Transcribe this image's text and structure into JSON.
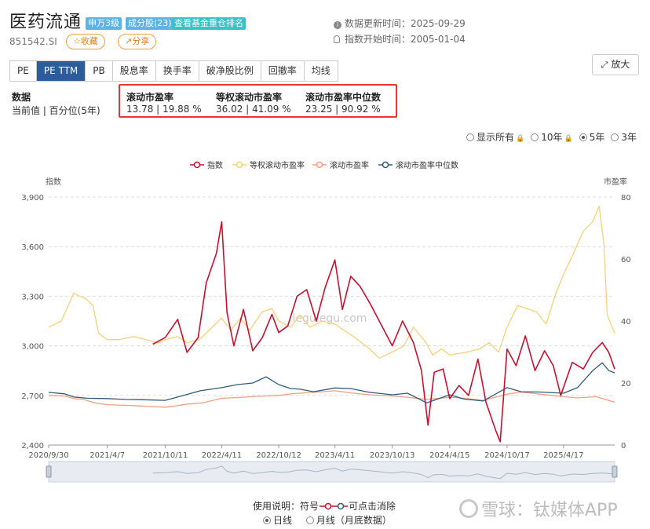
{
  "header": {
    "title": "医药流通",
    "tags": [
      "申万3级",
      "成分股(23)",
      "查看基金重仓排名"
    ],
    "tag_colors": [
      "#5bb3e8",
      "#5bb3e8",
      "#36c2c8"
    ],
    "code": "851542.SI",
    "favorite_label": "☆收藏",
    "share_label": "↗分享",
    "update_label": "数据更新时间：",
    "update_value": "2025-09-29",
    "start_label": "指数开始时间：",
    "start_value": "2005-01-04"
  },
  "tabs": [
    "PE",
    "PE TTM",
    "PB",
    "股息率",
    "换手率",
    "破净股比例",
    "回撤率",
    "均线"
  ],
  "active_tab": 1,
  "zoom_label": "放大",
  "stats": {
    "row_label": "数据",
    "row_sub": "当前值 | 百分位(5年)",
    "items": [
      {
        "name": "滚动市盈率",
        "value": "13.78 | 19.88 %"
      },
      {
        "name": "等权滚动市盈率",
        "value": "36.02 | 41.09 %"
      },
      {
        "name": "滚动市盈率中位数",
        "value": "23.25 | 90.92 %"
      }
    ]
  },
  "range_options": [
    "显示所有",
    "10年",
    "5年",
    "3年"
  ],
  "range_selected": "5年",
  "footer": {
    "usage_label": "使用说明：符号",
    "usage_suffix": "可点击消除",
    "daily_label": "日线",
    "monthly_label": "月线（月底数据）",
    "watermark": "雪球：钛媒体APP",
    "site_watermark": "legulegu.com"
  },
  "colors": {
    "index": "#c8102e",
    "equal": "#f5d27a",
    "pe": "#f0a080",
    "median": "#2f5b7c",
    "accent": "#2a5d9a"
  },
  "chart_data": {
    "type": "line",
    "legend_position": "top-center",
    "y_left_title": "指数",
    "y_right_title": "市盈率",
    "y_left_ticks": [
      "3,900",
      "3,600",
      "3,300",
      "3,000",
      "2,700",
      "2,400"
    ],
    "y_right_ticks": [
      "80",
      "60",
      "40",
      "20",
      "0"
    ],
    "ylim_left": [
      2400,
      3900
    ],
    "ylim_right": [
      0,
      80
    ],
    "x_ticks": [
      "2020/9/30",
      "2021/4/7",
      "2021/10/11",
      "2022/4/11",
      "2022/10/12",
      "2023/4/11",
      "2023/10/13",
      "2024/4/15",
      "2024/10/17",
      "2025/4/17"
    ],
    "x_range": [
      "2020-09-30",
      "2025-09-29"
    ],
    "series": [
      {
        "name": "指数",
        "axis": "left",
        "points": [
          [
            "2021-09-01",
            3010
          ],
          [
            "2021-10-11",
            3050
          ],
          [
            "2021-11-20",
            3160
          ],
          [
            "2021-12-20",
            2960
          ],
          [
            "2022-01-25",
            3050
          ],
          [
            "2022-02-20",
            3380
          ],
          [
            "2022-03-25",
            3560
          ],
          [
            "2022-04-11",
            3750
          ],
          [
            "2022-04-28",
            3200
          ],
          [
            "2022-05-20",
            3000
          ],
          [
            "2022-06-20",
            3220
          ],
          [
            "2022-07-20",
            2970
          ],
          [
            "2022-08-20",
            3050
          ],
          [
            "2022-09-20",
            3190
          ],
          [
            "2022-10-12",
            3080
          ],
          [
            "2022-11-10",
            3120
          ],
          [
            "2022-12-10",
            3300
          ],
          [
            "2023-01-10",
            3340
          ],
          [
            "2023-02-10",
            3150
          ],
          [
            "2023-03-10",
            3350
          ],
          [
            "2023-04-11",
            3520
          ],
          [
            "2023-05-05",
            3220
          ],
          [
            "2023-06-01",
            3420
          ],
          [
            "2023-07-01",
            3360
          ],
          [
            "2023-08-01",
            3260
          ],
          [
            "2023-09-01",
            3150
          ],
          [
            "2023-10-13",
            3000
          ],
          [
            "2023-11-15",
            3150
          ],
          [
            "2023-12-20",
            3020
          ],
          [
            "2024-01-15",
            2850
          ],
          [
            "2024-02-05",
            2520
          ],
          [
            "2024-02-25",
            2840
          ],
          [
            "2024-03-25",
            2860
          ],
          [
            "2024-04-15",
            2680
          ],
          [
            "2024-05-15",
            2760
          ],
          [
            "2024-06-15",
            2700
          ],
          [
            "2024-07-15",
            2920
          ],
          [
            "2024-08-10",
            2660
          ],
          [
            "2024-09-10",
            2490
          ],
          [
            "2024-09-25",
            2420
          ],
          [
            "2024-10-17",
            2980
          ],
          [
            "2024-11-15",
            2880
          ],
          [
            "2024-12-15",
            3060
          ],
          [
            "2025-01-15",
            2850
          ],
          [
            "2025-02-15",
            2970
          ],
          [
            "2025-03-15",
            2880
          ],
          [
            "2025-04-08",
            2700
          ],
          [
            "2025-05-15",
            2900
          ],
          [
            "2025-06-20",
            2860
          ],
          [
            "2025-07-20",
            2960
          ],
          [
            "2025-08-20",
            3020
          ],
          [
            "2025-09-10",
            2960
          ],
          [
            "2025-09-29",
            2860
          ]
        ]
      },
      {
        "name": "等权滚动市盈率",
        "axis": "right",
        "points": [
          [
            "2020-09-30",
            38
          ],
          [
            "2020-11-10",
            40
          ],
          [
            "2020-12-20",
            49
          ],
          [
            "2021-01-30",
            47
          ],
          [
            "2021-02-20",
            45
          ],
          [
            "2021-03-10",
            36
          ],
          [
            "2021-04-07",
            34
          ],
          [
            "2021-05-15",
            34
          ],
          [
            "2021-06-30",
            35
          ],
          [
            "2021-08-10",
            34
          ],
          [
            "2021-09-20",
            33
          ],
          [
            "2021-10-11",
            34
          ],
          [
            "2021-11-20",
            35
          ],
          [
            "2021-12-20",
            33
          ],
          [
            "2022-01-30",
            34
          ],
          [
            "2022-03-01",
            37
          ],
          [
            "2022-04-11",
            41
          ],
          [
            "2022-05-10",
            37
          ],
          [
            "2022-06-10",
            41
          ],
          [
            "2022-07-10",
            37
          ],
          [
            "2022-08-20",
            43
          ],
          [
            "2022-09-20",
            44
          ],
          [
            "2022-10-12",
            40
          ],
          [
            "2022-11-20",
            38
          ],
          [
            "2022-12-20",
            42
          ],
          [
            "2023-01-20",
            38
          ],
          [
            "2023-03-01",
            40
          ],
          [
            "2023-04-11",
            39
          ],
          [
            "2023-05-10",
            37
          ],
          [
            "2023-06-10",
            35
          ],
          [
            "2023-08-01",
            31
          ],
          [
            "2023-09-01",
            28
          ],
          [
            "2023-10-13",
            30
          ],
          [
            "2023-11-20",
            32
          ],
          [
            "2023-12-20",
            38
          ],
          [
            "2024-01-30",
            33
          ],
          [
            "2024-02-20",
            29
          ],
          [
            "2024-03-20",
            31
          ],
          [
            "2024-04-15",
            29
          ],
          [
            "2024-06-10",
            30
          ],
          [
            "2024-07-20",
            31
          ],
          [
            "2024-08-20",
            33
          ],
          [
            "2024-09-20",
            30
          ],
          [
            "2024-10-17",
            38
          ],
          [
            "2024-11-20",
            45
          ],
          [
            "2024-12-20",
            44
          ],
          [
            "2025-01-20",
            43
          ],
          [
            "2025-02-20",
            39
          ],
          [
            "2025-03-20",
            48
          ],
          [
            "2025-04-17",
            55
          ],
          [
            "2025-05-20",
            62
          ],
          [
            "2025-06-20",
            69
          ],
          [
            "2025-07-20",
            72
          ],
          [
            "2025-08-10",
            77
          ],
          [
            "2025-08-25",
            65
          ],
          [
            "2025-09-05",
            42
          ],
          [
            "2025-09-29",
            36
          ]
        ]
      },
      {
        "name": "滚动市盈率",
        "axis": "right",
        "points": [
          [
            "2020-09-30",
            16
          ],
          [
            "2020-11-20",
            15.8
          ],
          [
            "2020-12-20",
            15
          ],
          [
            "2021-01-20",
            14.7
          ],
          [
            "2021-03-01",
            13.5
          ],
          [
            "2021-04-07",
            13
          ],
          [
            "2021-06-01",
            12.8
          ],
          [
            "2021-07-20",
            12.6
          ],
          [
            "2021-09-01",
            12.4
          ],
          [
            "2021-10-11",
            12.2
          ],
          [
            "2021-11-20",
            12.7
          ],
          [
            "2021-12-20",
            13.2
          ],
          [
            "2022-02-10",
            13.6
          ],
          [
            "2022-04-11",
            15.1
          ],
          [
            "2022-06-01",
            15.3
          ],
          [
            "2022-08-01",
            15.7
          ],
          [
            "2022-10-12",
            16
          ],
          [
            "2022-12-01",
            16.6
          ],
          [
            "2023-02-01",
            17
          ],
          [
            "2023-04-11",
            17.5
          ],
          [
            "2023-06-01",
            16.8
          ],
          [
            "2023-08-01",
            16.2
          ],
          [
            "2023-10-13",
            15.8
          ],
          [
            "2023-12-01",
            15.4
          ],
          [
            "2024-02-01",
            14.7
          ],
          [
            "2024-04-15",
            15.4
          ],
          [
            "2024-06-01",
            15.1
          ],
          [
            "2024-08-01",
            14.4
          ],
          [
            "2024-10-17",
            16.4
          ],
          [
            "2024-12-01",
            17.1
          ],
          [
            "2025-02-01",
            16.4
          ],
          [
            "2025-04-17",
            15.6
          ],
          [
            "2025-06-01",
            15.2
          ],
          [
            "2025-08-01",
            15.6
          ],
          [
            "2025-09-29",
            13.8
          ]
        ]
      },
      {
        "name": "滚动市盈率中位数",
        "axis": "right",
        "points": [
          [
            "2020-09-30",
            17
          ],
          [
            "2020-11-20",
            16.5
          ],
          [
            "2020-12-20",
            15.5
          ],
          [
            "2021-02-01",
            15.1
          ],
          [
            "2021-04-07",
            15
          ],
          [
            "2021-06-01",
            14.7
          ],
          [
            "2021-08-01",
            14.6
          ],
          [
            "2021-10-11",
            14.4
          ],
          [
            "2021-12-01",
            15.8
          ],
          [
            "2022-02-01",
            17.5
          ],
          [
            "2022-04-11",
            18.5
          ],
          [
            "2022-06-01",
            19.5
          ],
          [
            "2022-07-20",
            20
          ],
          [
            "2022-09-01",
            22
          ],
          [
            "2022-10-12",
            19.5
          ],
          [
            "2022-11-20",
            18.2
          ],
          [
            "2022-12-20",
            18
          ],
          [
            "2023-02-01",
            17.2
          ],
          [
            "2023-04-11",
            18.4
          ],
          [
            "2023-06-01",
            18.2
          ],
          [
            "2023-08-01",
            17
          ],
          [
            "2023-10-13",
            16.2
          ],
          [
            "2023-12-01",
            16.7
          ],
          [
            "2024-02-01",
            13.6
          ],
          [
            "2024-04-15",
            16.2
          ],
          [
            "2024-06-01",
            14.8
          ],
          [
            "2024-08-01",
            14.2
          ],
          [
            "2024-10-17",
            18.5
          ],
          [
            "2024-12-01",
            17.2
          ],
          [
            "2025-02-01",
            17.1
          ],
          [
            "2025-04-17",
            16.7
          ],
          [
            "2025-06-01",
            18.5
          ],
          [
            "2025-07-20",
            24
          ],
          [
            "2025-08-20",
            26.5
          ],
          [
            "2025-09-10",
            24
          ],
          [
            "2025-09-29",
            23.3
          ]
        ]
      }
    ]
  }
}
